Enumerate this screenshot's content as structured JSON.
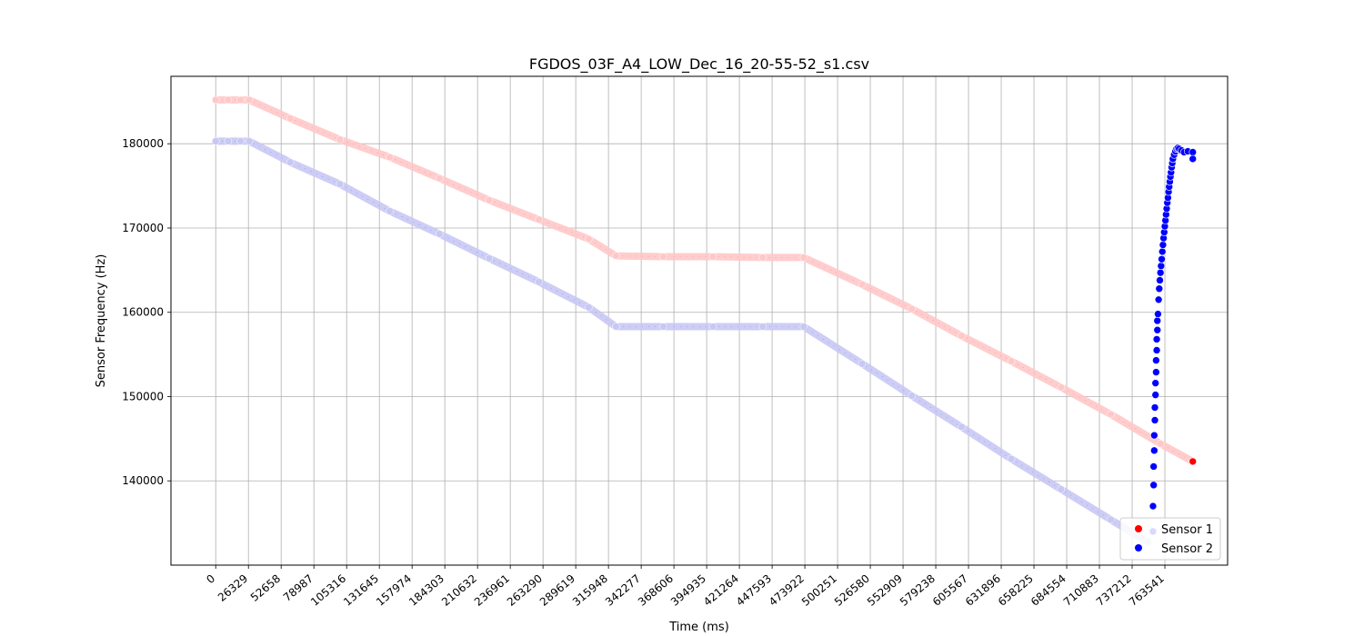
{
  "chart_data": {
    "type": "scatter",
    "title": "FGDOS_03F_A4_LOW_Dec_16_20-55-52_s1.csv",
    "xlabel": "Time (ms)",
    "ylabel": "Sensor Frequency (Hz)",
    "xlim": [
      -36000,
      814000
    ],
    "ylim": [
      130000,
      188000
    ],
    "xticks": [
      0,
      26329,
      52658,
      78987,
      105316,
      131645,
      157974,
      184303,
      210632,
      236961,
      263290,
      289619,
      315948,
      342277,
      368606,
      394935,
      421264,
      447593,
      473922,
      500251,
      526580,
      552909,
      579238,
      605567,
      631896,
      658225,
      684554,
      710883,
      737212,
      763541
    ],
    "yticks": [
      140000,
      150000,
      160000,
      170000,
      180000
    ],
    "grid": true,
    "legend_position": "bottom-right",
    "series": [
      {
        "name": "Sensor 1",
        "color": "#ff0000",
        "fade_color": "#ffc8c8",
        "points": [
          [
            0,
            185200
          ],
          [
            10000,
            185200
          ],
          [
            20000,
            185200
          ],
          [
            27000,
            185200
          ],
          [
            60000,
            183000
          ],
          [
            100000,
            180500
          ],
          [
            140000,
            178400
          ],
          [
            180000,
            175900
          ],
          [
            220000,
            173300
          ],
          [
            260000,
            171000
          ],
          [
            300000,
            168700
          ],
          [
            322000,
            166700
          ],
          [
            360000,
            166600
          ],
          [
            400000,
            166600
          ],
          [
            440000,
            166500
          ],
          [
            473000,
            166500
          ],
          [
            520000,
            163300
          ],
          [
            560000,
            160400
          ],
          [
            600000,
            157200
          ],
          [
            640000,
            154200
          ],
          [
            680000,
            151100
          ],
          [
            720000,
            147900
          ],
          [
            760000,
            144400
          ],
          [
            786000,
            142300
          ]
        ]
      },
      {
        "name": "Sensor 2",
        "color": "#0000ff",
        "fade_color": "#c8c8f4",
        "points": [
          [
            0,
            180300
          ],
          [
            10000,
            180300
          ],
          [
            20000,
            180300
          ],
          [
            27000,
            180300
          ],
          [
            60000,
            177800
          ],
          [
            100000,
            175200
          ],
          [
            140000,
            172000
          ],
          [
            180000,
            169300
          ],
          [
            220000,
            166400
          ],
          [
            260000,
            163600
          ],
          [
            300000,
            160600
          ],
          [
            322000,
            158300
          ],
          [
            360000,
            158300
          ],
          [
            400000,
            158300
          ],
          [
            440000,
            158300
          ],
          [
            473000,
            158300
          ],
          [
            520000,
            153900
          ],
          [
            560000,
            150100
          ],
          [
            600000,
            146400
          ],
          [
            640000,
            142600
          ],
          [
            680000,
            139000
          ],
          [
            720000,
            135400
          ],
          [
            750000,
            132700
          ]
        ],
        "rise_points": [
          [
            754000,
            134000
          ],
          [
            754000,
            137000
          ],
          [
            754500,
            139500
          ],
          [
            754500,
            141700
          ],
          [
            755000,
            143600
          ],
          [
            755000,
            145400
          ],
          [
            755500,
            147200
          ],
          [
            755500,
            148700
          ],
          [
            756000,
            150200
          ],
          [
            756000,
            151600
          ],
          [
            756500,
            152900
          ],
          [
            756500,
            154300
          ],
          [
            757000,
            155500
          ],
          [
            757000,
            156800
          ],
          [
            757500,
            157900
          ],
          [
            757500,
            159000
          ],
          [
            758000,
            159800
          ],
          [
            758500,
            161500
          ],
          [
            759000,
            162800
          ],
          [
            759500,
            163800
          ],
          [
            760000,
            164700
          ],
          [
            760500,
            165500
          ],
          [
            761000,
            166300
          ],
          [
            761500,
            167200
          ],
          [
            762000,
            168000
          ],
          [
            762500,
            168800
          ],
          [
            763000,
            169500
          ],
          [
            763500,
            170200
          ],
          [
            764000,
            170900
          ],
          [
            764500,
            171600
          ],
          [
            765000,
            172300
          ],
          [
            765500,
            173000
          ],
          [
            766000,
            173600
          ],
          [
            766500,
            174300
          ],
          [
            767000,
            174900
          ],
          [
            767500,
            175500
          ],
          [
            768000,
            176100
          ],
          [
            768500,
            176600
          ],
          [
            769000,
            177200
          ],
          [
            769500,
            177700
          ],
          [
            770000,
            178200
          ],
          [
            771000,
            178700
          ],
          [
            772000,
            179100
          ],
          [
            773000,
            179400
          ],
          [
            774000,
            179500
          ],
          [
            775000,
            179400
          ],
          [
            777000,
            179200
          ],
          [
            779000,
            179000
          ],
          [
            782000,
            179100
          ],
          [
            786000,
            179000
          ],
          [
            786000,
            178200
          ]
        ]
      }
    ]
  }
}
